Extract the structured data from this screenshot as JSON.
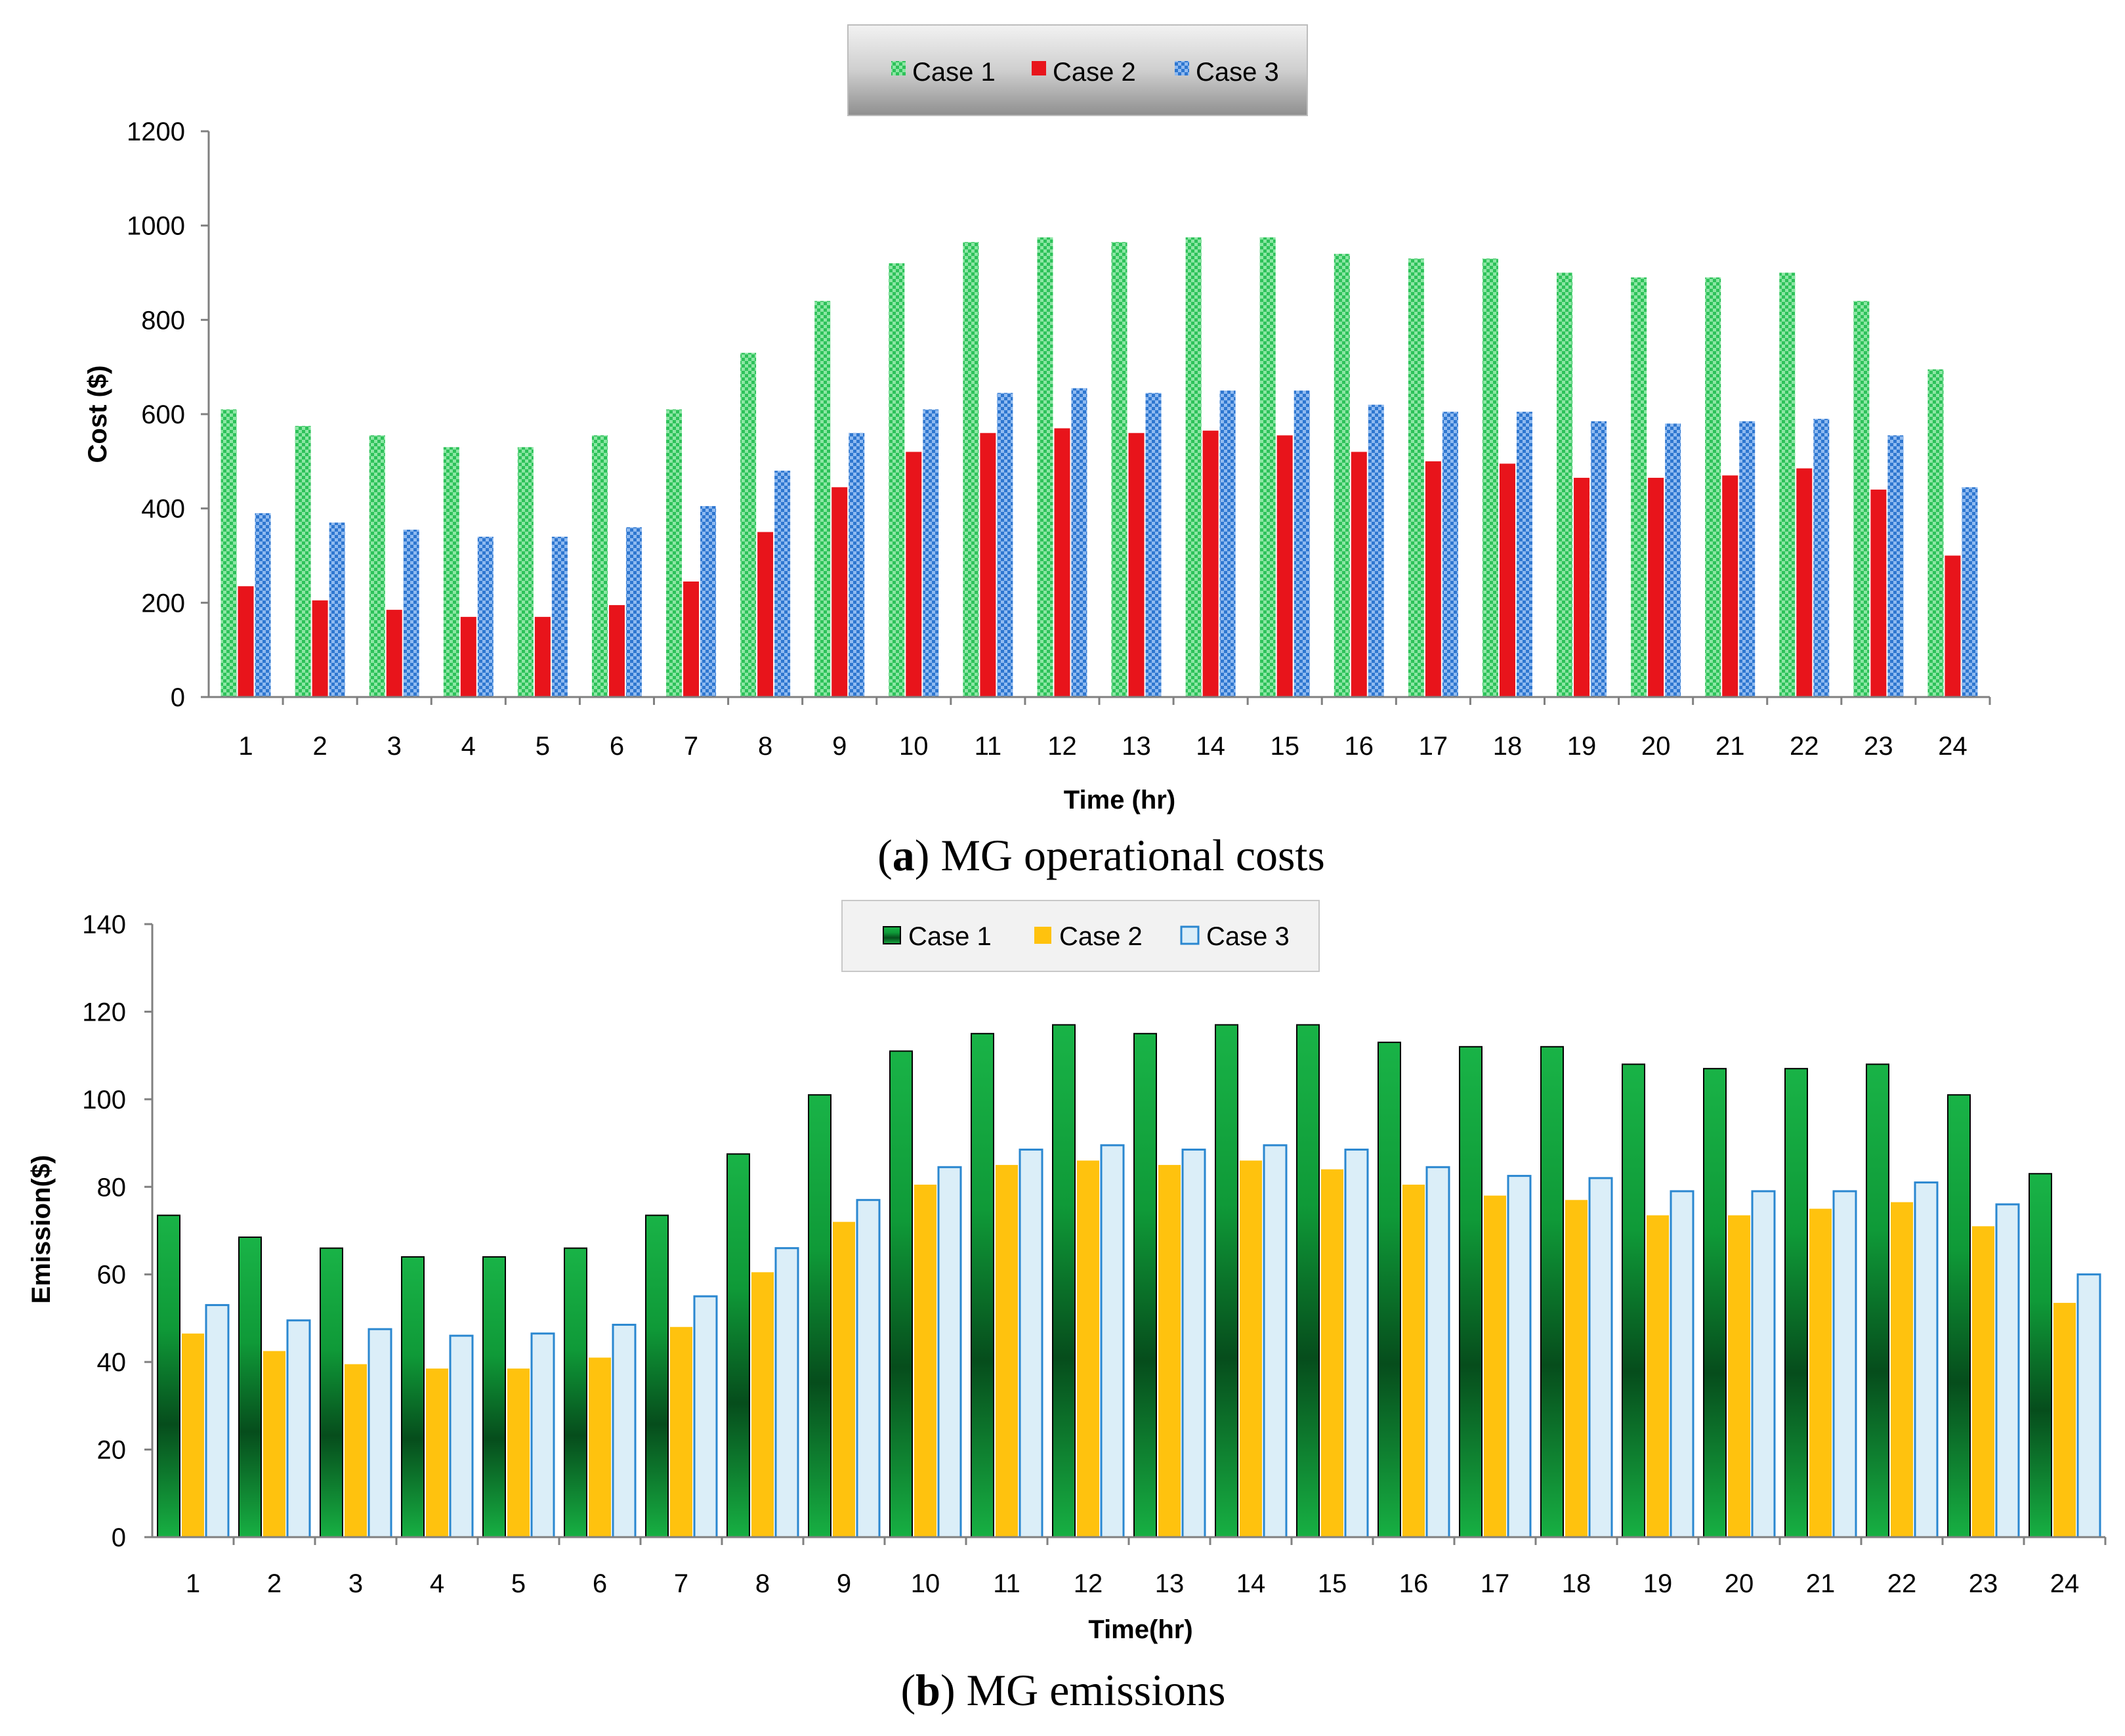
{
  "chart_data": [
    {
      "id": "a",
      "type": "bar",
      "caption": {
        "letter": "a",
        "text": "MG operational costs"
      },
      "xlabel": "Time (hr)",
      "ylabel": "Cost ($)",
      "ylim": [
        0,
        1200
      ],
      "yticks": [
        0,
        200,
        400,
        600,
        800,
        1000,
        1200
      ],
      "categories": [
        "1",
        "2",
        "3",
        "4",
        "5",
        "6",
        "7",
        "8",
        "9",
        "10",
        "11",
        "12",
        "13",
        "14",
        "15",
        "16",
        "17",
        "18",
        "19",
        "20",
        "21",
        "22",
        "23",
        "24"
      ],
      "legend_position": "top-center",
      "series": [
        {
          "name": "Case 1",
          "color": "#2ec25a",
          "pattern": "checker-green",
          "values": [
            610,
            575,
            555,
            530,
            530,
            555,
            610,
            730,
            840,
            920,
            965,
            975,
            965,
            975,
            975,
            940,
            930,
            930,
            900,
            890,
            890,
            900,
            840,
            695
          ]
        },
        {
          "name": "Case 2",
          "color": "#e8141b",
          "pattern": "solid",
          "values": [
            235,
            205,
            185,
            170,
            170,
            195,
            245,
            350,
            445,
            520,
            560,
            570,
            560,
            565,
            555,
            520,
            500,
            495,
            465,
            465,
            470,
            485,
            440,
            300
          ]
        },
        {
          "name": "Case 3",
          "color": "#2f77d0",
          "pattern": "checker-blue",
          "values": [
            390,
            370,
            355,
            340,
            340,
            360,
            405,
            480,
            560,
            610,
            645,
            655,
            645,
            650,
            650,
            620,
            605,
            605,
            585,
            580,
            585,
            590,
            555,
            445
          ]
        }
      ]
    },
    {
      "id": "b",
      "type": "bar",
      "caption": {
        "letter": "b",
        "text": "MG emissions"
      },
      "xlabel": "Time(hr)",
      "ylabel": "Emission($)",
      "ylim": [
        0,
        140
      ],
      "yticks": [
        0,
        20,
        40,
        60,
        80,
        100,
        120,
        140
      ],
      "categories": [
        "1",
        "2",
        "3",
        "4",
        "5",
        "6",
        "7",
        "8",
        "9",
        "10",
        "11",
        "12",
        "13",
        "14",
        "15",
        "16",
        "17",
        "18",
        "19",
        "20",
        "21",
        "22",
        "23",
        "24"
      ],
      "legend_position": "top-center",
      "series": [
        {
          "name": "Case 1",
          "color": "#13a63e",
          "pattern": "gradient-green",
          "values": [
            73.5,
            68.5,
            66,
            64,
            64,
            66,
            73.5,
            87.5,
            101,
            111,
            115,
            117,
            115,
            117,
            117,
            113,
            112,
            112,
            108,
            107,
            107,
            108,
            101,
            83
          ]
        },
        {
          "name": "Case 2",
          "color": "#ffc20e",
          "pattern": "solid",
          "values": [
            46.5,
            42.5,
            39.5,
            38.5,
            38.5,
            41,
            48,
            60.5,
            72,
            80.5,
            85,
            86,
            85,
            86,
            84,
            80.5,
            78,
            77,
            73.5,
            73.5,
            75,
            76.5,
            71,
            53.5
          ]
        },
        {
          "name": "Case 3",
          "color": "#dbeef8",
          "pattern": "outline-blue",
          "values": [
            53,
            49.5,
            47.5,
            46,
            46.5,
            48.5,
            55,
            66,
            77,
            84.5,
            88.5,
            89.5,
            88.5,
            89.5,
            88.5,
            84.5,
            82.5,
            82,
            79,
            79,
            79,
            81,
            76,
            60
          ]
        }
      ]
    }
  ]
}
